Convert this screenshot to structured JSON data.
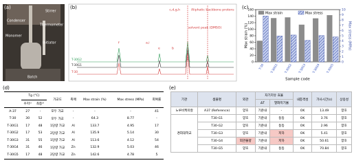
{
  "panel_labels": [
    "(a)",
    "(b)",
    "(c)",
    "(d)",
    "(e)"
  ],
  "photo": {
    "labels": [
      "Stirrer",
      "Condenser",
      "Thermometer",
      "Monomer",
      "Initiator",
      "Batch"
    ]
  },
  "spectrum": {
    "annotations": [
      "Aliphatic backbone protons",
      "solvent peak (DMSO)",
      "c,d,g,h",
      "f",
      "e",
      "b",
      "a,i"
    ],
    "traces": [
      "T-30G2",
      "T-30G1",
      "T-30"
    ]
  },
  "chart_data": {
    "type": "bar",
    "categories": [
      "T-30",
      "T-30G1",
      "T-30G2",
      "T-30G3",
      "T-30G4",
      "T-30G5"
    ],
    "series": [
      {
        "name": "Max strain",
        "color": "#8c8c8c",
        "values": [
          64.3,
          133.7,
          135.9,
          113.6,
          132.9,
          142.6
        ]
      },
      {
        "name": "Max stress",
        "color": "#3a4fa8",
        "axis": "y2",
        "values": [
          8.77,
          4.95,
          5.14,
          4.12,
          5.03,
          4.78
        ]
      }
    ],
    "ylabel": "Max strain (%)",
    "y2label": "Max stress (MPa)",
    "xlabel": "Sample code",
    "ylim": [
      0,
      160
    ],
    "yticks": [
      0,
      20,
      40,
      60,
      80,
      100,
      120,
      140,
      160
    ],
    "y2lim": [
      0,
      10
    ],
    "y2ticks": [
      0,
      1,
      2,
      3,
      4,
      5,
      6,
      7,
      8,
      9,
      10
    ]
  },
  "table_d": {
    "header": [
      "",
      "Tg (°C)",
      "가교도",
      "촉매",
      "Max strain (%)",
      "Max stress (MPa)",
      "회복률"
    ],
    "subheader": [
      "수지¹⁾",
      "최종²⁾"
    ],
    "rows": [
      [
        "A-37",
        "27",
        "-",
        "모두 가교",
        "-",
        "-",
        "-",
        "41"
      ],
      [
        "T-30",
        "30",
        "52",
        "모두 가교",
        "-",
        "64.3",
        "8.77",
        "-"
      ],
      [
        "T-30G1",
        "17",
        "48",
        "1당량 가교",
        "Al",
        "133.7",
        "4.95",
        "17"
      ],
      [
        "T-30G2",
        "17",
        "53",
        "2당량 가교",
        "Al",
        "135.9",
        "5.14",
        "30"
      ],
      [
        "T-30G3",
        "31",
        "55",
        "1당량 가교",
        "Al",
        "113.6",
        "4.12",
        "54"
      ],
      [
        "T-30G4",
        "31",
        "46",
        "1당량 가교",
        "Zn",
        "132.9",
        "5.03",
        "46"
      ],
      [
        "T-30G5",
        "17",
        "48",
        "2당량 가교",
        "Zn",
        "142.6",
        "4.78",
        "5"
      ]
    ]
  },
  "table_e": {
    "header": [
      "기관",
      "샘플명",
      "외관",
      "자기치유 효율",
      "내충격성",
      "가사시간(s)",
      "상용성"
    ],
    "subheader": [
      "ΔT",
      "열화지기율"
    ],
    "groups": [
      {
        "org": "노루비케미칼",
        "rows": [
          [
            "A37 (Reference)",
            "양호",
            "기준내",
            "-",
            "OK",
            "13.49",
            "양호"
          ]
        ]
      },
      {
        "org": "경희대학교",
        "rows": [
          [
            "T30-G1",
            "양호",
            "기준내",
            "동등",
            "OK",
            "3.76",
            "양호"
          ],
          [
            "T30-G2",
            "양호",
            "기준내",
            "동등",
            "OK",
            "2.96",
            "양호"
          ],
          [
            "T30-G3",
            "양호",
            "기준내",
            "저하",
            "OK",
            "5.41",
            "양호"
          ],
          [
            "T30-G4",
            "외관불량",
            "기준내",
            "저하",
            "OK",
            "50.61",
            "양호"
          ],
          [
            "T30-G5",
            "양호",
            "기준내",
            "동등",
            "OK",
            "70.84",
            "양호"
          ]
        ]
      }
    ]
  }
}
